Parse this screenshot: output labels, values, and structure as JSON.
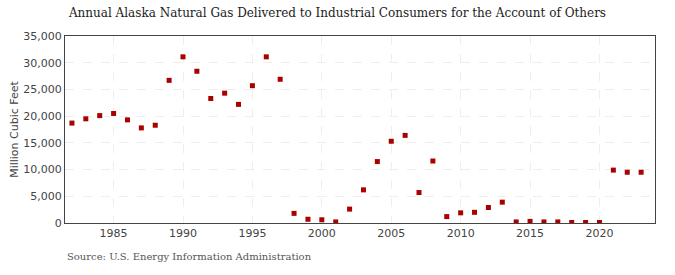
{
  "chart_data": {
    "type": "scatter",
    "title": "Annual Alaska Natural Gas Delivered to Industrial Consumers for the Account of Others",
    "ylabel": "Million Cubic Feet",
    "annotations": [
      "Source: U.S. Energy Information Administration"
    ],
    "x": [
      1982,
      1983,
      1984,
      1985,
      1986,
      1987,
      1988,
      1989,
      1990,
      1991,
      1992,
      1993,
      1994,
      1995,
      1996,
      1997,
      1998,
      1999,
      2000,
      2001,
      2002,
      2003,
      2004,
      2005,
      2006,
      2007,
      2008,
      2009,
      2010,
      2011,
      2012,
      2013,
      2014,
      2015,
      2016,
      2017,
      2018,
      2019,
      2020,
      2021,
      2022,
      2023
    ],
    "values": [
      18700,
      19500,
      20100,
      20500,
      19300,
      17800,
      18300,
      26700,
      31100,
      28400,
      23300,
      24300,
      22200,
      25700,
      31100,
      26900,
      1800,
      700,
      600,
      200,
      2600,
      6200,
      11500,
      15300,
      16400,
      5700,
      11600,
      1200,
      1900,
      2000,
      2900,
      3900,
      200,
      300,
      200,
      200,
      100,
      100,
      100,
      9900,
      9500,
      9500
    ],
    "color": "#aa0000",
    "marker": "square",
    "xlim": [
      1981.5,
      2024
    ],
    "xticks": [
      1985,
      1990,
      1995,
      2000,
      2005,
      2010,
      2015,
      2020
    ],
    "ylim": [
      0,
      35000
    ],
    "yticks": [
      0,
      {
        "value": 5000,
        "label": "5,000"
      },
      {
        "value": 10000,
        "label": "10,000"
      },
      {
        "value": 15000,
        "label": "15,000"
      },
      {
        "value": 20000,
        "label": "20,000"
      },
      {
        "value": 25000,
        "label": "25,000"
      },
      {
        "value": 30000,
        "label": "30,000"
      },
      {
        "value": 35000,
        "label": "35,000"
      }
    ],
    "grid": true
  }
}
